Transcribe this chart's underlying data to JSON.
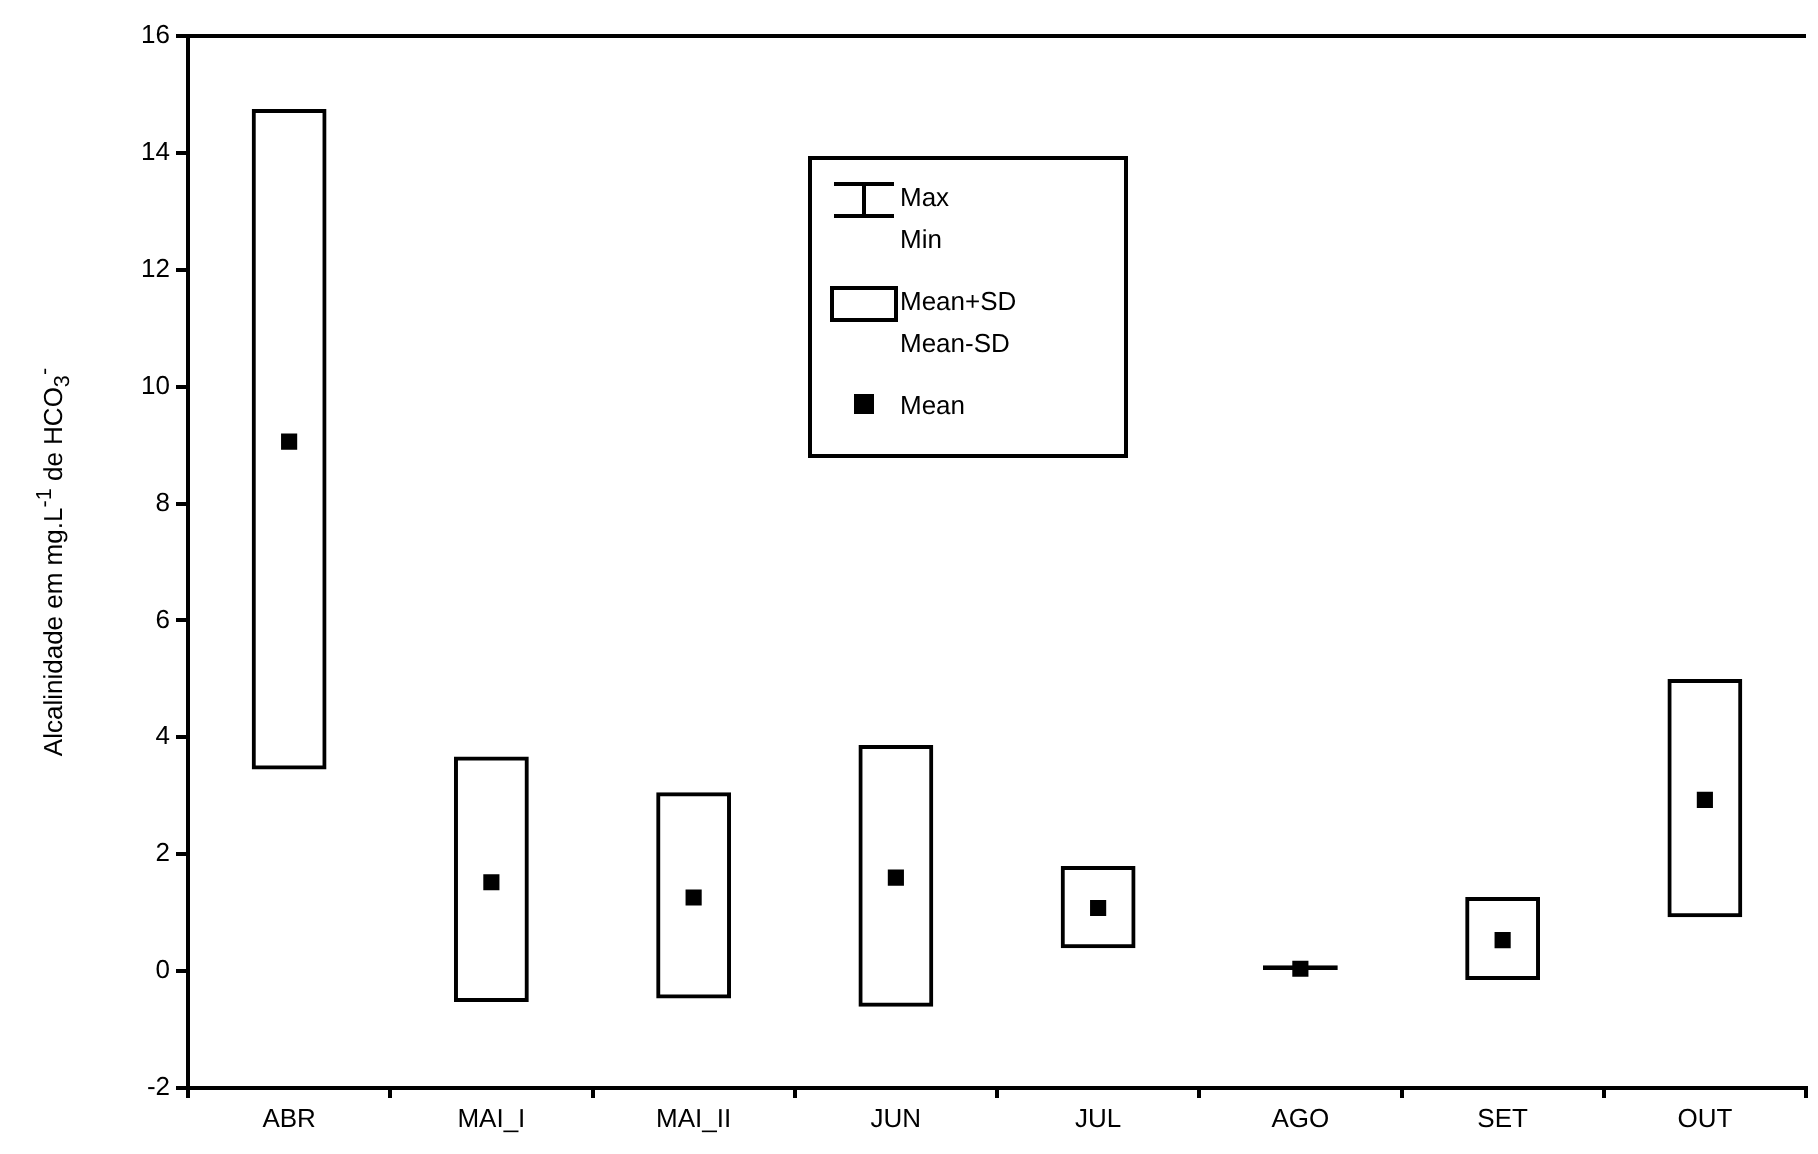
{
  "chart_data": {
    "type": "bar",
    "ylabel": "Alcalinidade em mg.L$^{-1}$ de HCO$_{3}$$^{-}$",
    "categories": [
      "ABR",
      "MAI_I",
      "MAI_II",
      "JUN",
      "JUL",
      "AGO",
      "SET",
      "OUT"
    ],
    "series": [
      {
        "name": "Mean+SD Mean-SD",
        "color": "#000000",
        "base": [
          3.45,
          -0.53,
          -0.47,
          -0.61,
          0.39,
          0.02,
          -0.15,
          0.92
        ],
        "values": [
          11.3,
          4.2,
          3.53,
          4.48,
          1.41,
          0.08,
          1.42,
          4.08
        ]
      },
      {
        "name": "Mean",
        "type": "scatter",
        "color": "#000000",
        "marker": "square",
        "x": [
          "ABR",
          "MAI_I",
          "MAI_II",
          "JUN",
          "JUL",
          "AGO",
          "SET",
          "OUT"
        ],
        "values": [
          9.06,
          1.52,
          1.26,
          1.6,
          1.08,
          0.04,
          0.53,
          2.93
        ]
      }
    ],
    "annotations": [
      "Max Min"
    ],
    "ylim": [
      -2,
      16
    ],
    "yticks": [
      -2,
      0,
      2,
      4,
      6,
      8,
      10,
      12,
      14,
      16
    ],
    "grid": false,
    "legend": "top"
  }
}
